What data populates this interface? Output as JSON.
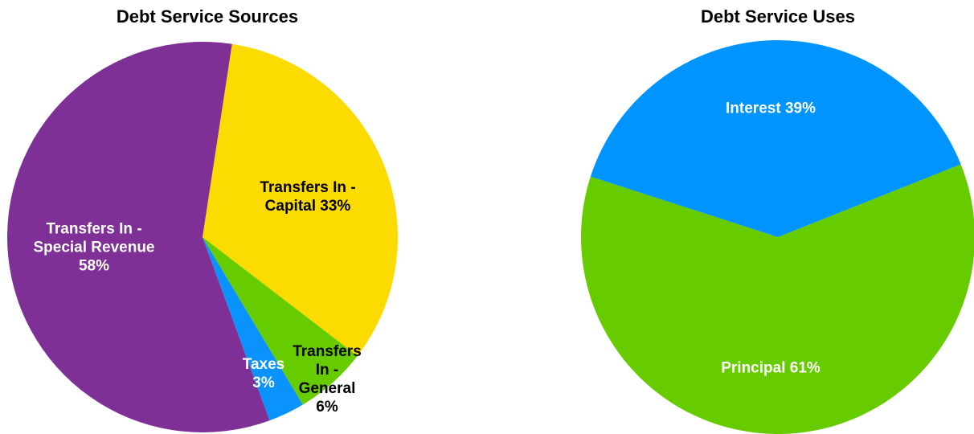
{
  "chart_data": [
    {
      "type": "pie",
      "title": "Debt Service Sources",
      "categories": [
        "Transfers In - Capital",
        "Transfers In - General",
        "Taxes",
        "Transfers In - Special Revenue"
      ],
      "values": [
        33,
        6,
        3,
        58
      ],
      "value_labels": [
        "33%",
        "6%",
        "3%",
        "58%"
      ],
      "colors": [
        "#fcdc00",
        "#66cc00",
        "#0a93fc",
        "#7f3096"
      ]
    },
    {
      "type": "pie",
      "title": "Debt Service Uses",
      "categories": [
        "Principal",
        "Interest"
      ],
      "values": [
        61,
        39
      ],
      "value_labels": [
        "61%",
        "39%"
      ],
      "colors": [
        "#66cc00",
        "#0094ff"
      ]
    }
  ]
}
